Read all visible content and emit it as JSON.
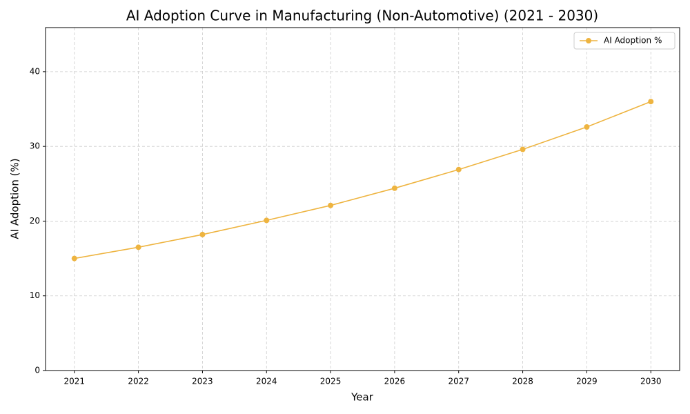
{
  "chart_data": {
    "type": "line",
    "title": "AI Adoption Curve in Manufacturing (Non-Automotive) (2021 - 2030)",
    "x_label": "Year",
    "y_label": "AI Adoption (%)",
    "x": [
      2021,
      2022,
      2023,
      2024,
      2025,
      2026,
      2027,
      2028,
      2029,
      2030
    ],
    "series": [
      {
        "name": "AI Adoption %",
        "color": "#eeb440",
        "values": [
          15.0,
          16.5,
          18.2,
          20.1,
          22.1,
          24.4,
          26.9,
          29.6,
          32.6,
          36.0
        ]
      }
    ],
    "xlim": [
      2020.55,
      2030.45
    ],
    "xticks": [
      2021,
      2022,
      2023,
      2024,
      2025,
      2026,
      2027,
      2028,
      2029,
      2030
    ],
    "ylim": [
      0,
      45.9
    ],
    "yticks": [
      0,
      10,
      20,
      30,
      40
    ],
    "grid": true,
    "legend": "upper right"
  }
}
